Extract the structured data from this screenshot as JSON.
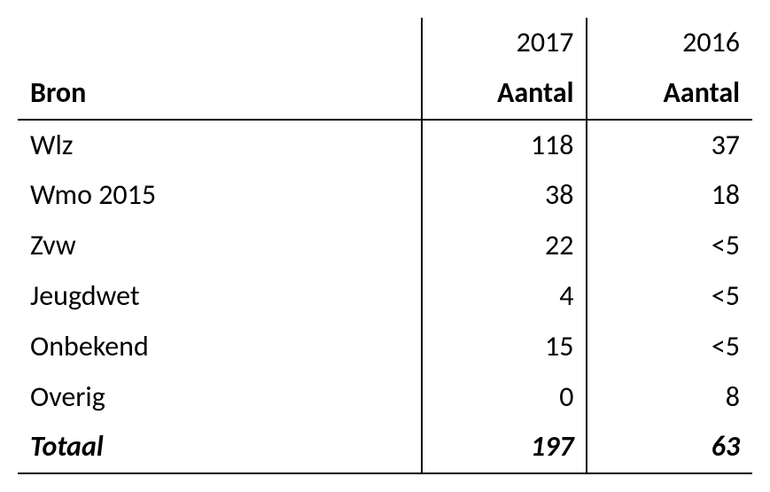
{
  "table": {
    "type": "table",
    "background_color": "#ffffff",
    "text_color": "#000000",
    "border_color": "#000000",
    "font_family": "Calibri",
    "cell_fontsize": 32,
    "columns": [
      {
        "key": "bron",
        "label": "Bron",
        "year": "",
        "align": "left",
        "width_pct": 55
      },
      {
        "key": "y2017",
        "label": "Aantal",
        "year": "2017",
        "align": "right",
        "width_pct": 22.5
      },
      {
        "key": "y2016",
        "label": "Aantal",
        "year": "2016",
        "align": "right",
        "width_pct": 22.5
      }
    ],
    "rows": [
      {
        "bron": "Wlz",
        "y2017": "118",
        "y2016": "37"
      },
      {
        "bron": "Wmo 2015",
        "y2017": "38",
        "y2016": "18"
      },
      {
        "bron": "Zvw",
        "y2017": "22",
        "y2016": "<5"
      },
      {
        "bron": "Jeugdwet",
        "y2017": "4",
        "y2016": "<5"
      },
      {
        "bron": "Onbekend",
        "y2017": "15",
        "y2016": "<5"
      },
      {
        "bron": "Overig",
        "y2017": "0",
        "y2016": "8"
      }
    ],
    "total": {
      "bron": "Totaal",
      "y2017": "197",
      "y2016": "63"
    }
  }
}
